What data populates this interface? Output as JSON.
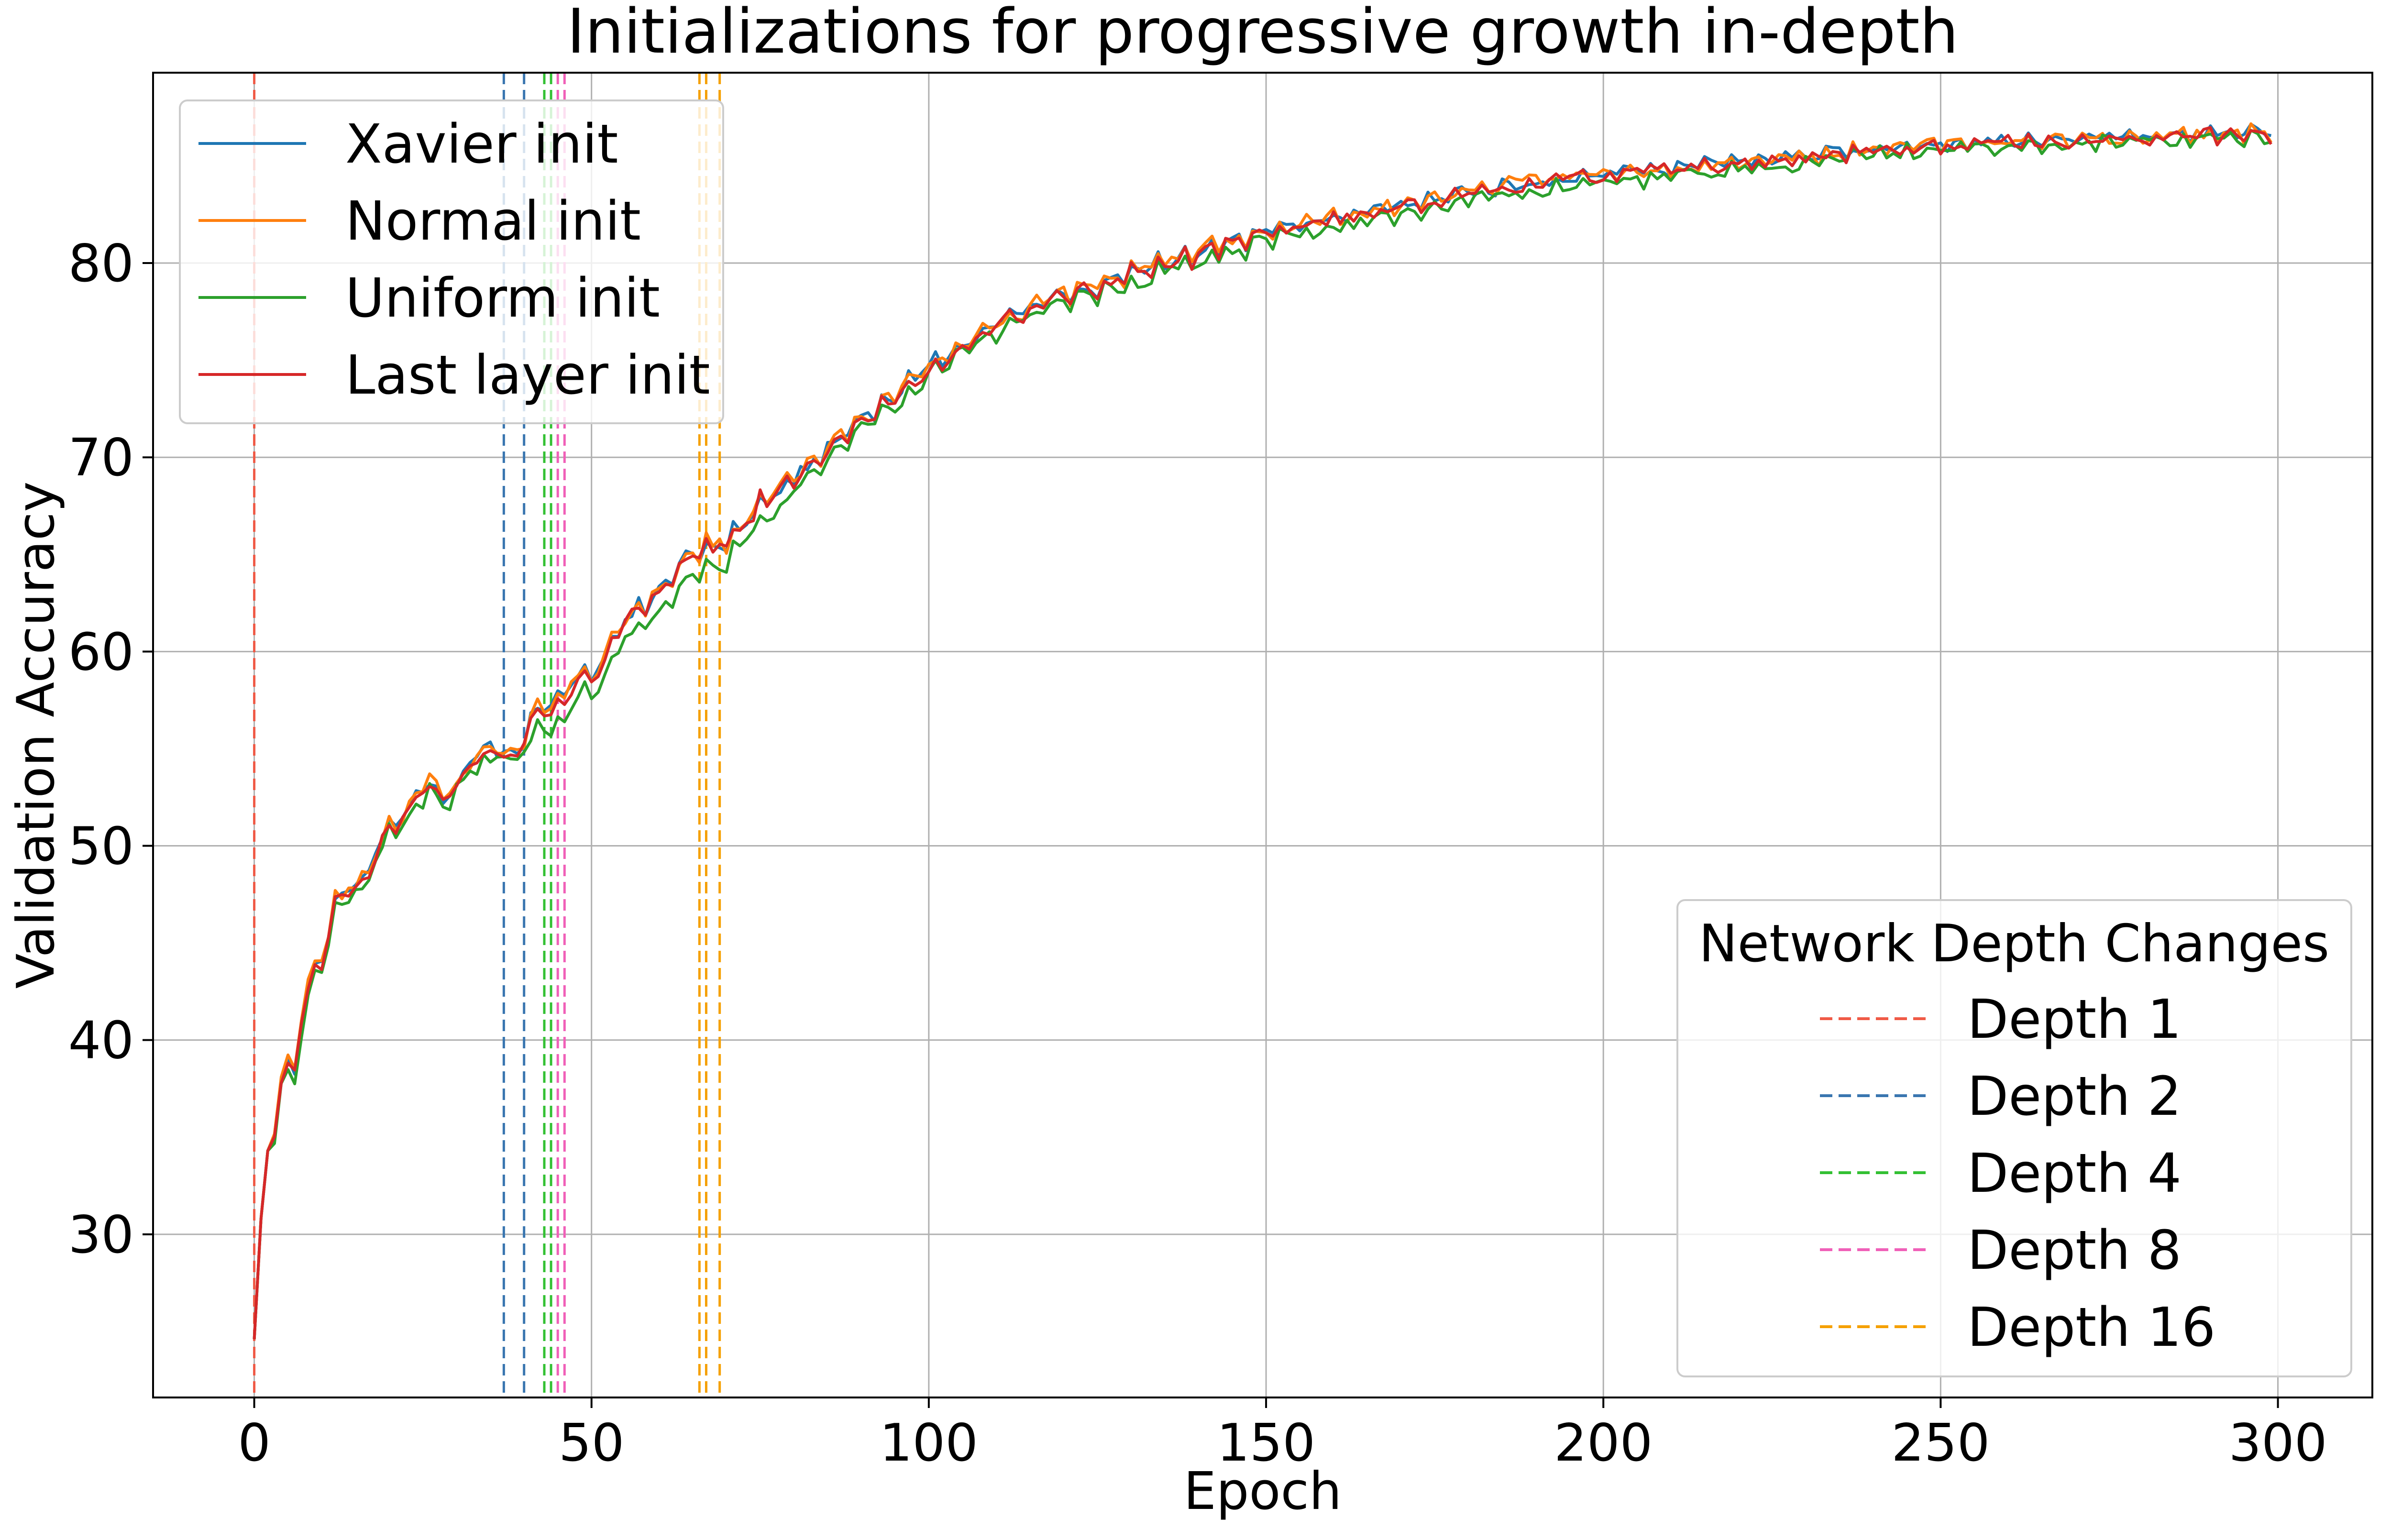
{
  "chart_data": {
    "type": "line",
    "title": "Initializations for progressive growth in-depth",
    "xlabel": "Epoch",
    "ylabel": "Validation Accuracy",
    "xlim": [
      -15,
      314
    ],
    "ylim": [
      21.6,
      89.8
    ],
    "xticks": [
      0,
      50,
      100,
      150,
      200,
      250,
      300
    ],
    "yticks": [
      30,
      40,
      50,
      60,
      70,
      80
    ],
    "grid": true,
    "anchors": {
      "x": [
        0,
        1,
        2,
        3,
        4,
        5,
        6,
        7,
        8,
        9,
        10,
        12,
        14,
        16,
        18,
        20,
        22,
        24,
        26,
        28,
        30,
        32,
        34,
        36,
        38,
        40,
        42,
        44,
        46,
        48,
        50,
        55,
        60,
        65,
        70,
        75,
        80,
        90,
        100,
        110,
        120,
        130,
        140,
        150,
        160,
        170,
        180,
        190,
        200,
        210,
        220,
        230,
        240,
        250,
        260,
        270,
        280,
        290,
        299
      ],
      "y": [
        24.6,
        30.8,
        34.3,
        35.5,
        37.8,
        39.0,
        38.4,
        41.0,
        42.5,
        44.1,
        43.9,
        47.0,
        47.8,
        48.1,
        49.5,
        51.0,
        51.4,
        52.5,
        53.2,
        52.4,
        53.0,
        54.2,
        54.6,
        55.1,
        54.4,
        55.5,
        57.0,
        57.2,
        57.4,
        59.0,
        58.5,
        61.6,
        63.0,
        65.1,
        65.5,
        67.5,
        68.8,
        71.8,
        74.5,
        76.8,
        78.3,
        79.3,
        80.5,
        81.5,
        82.2,
        82.8,
        83.6,
        84.1,
        84.5,
        84.8,
        85.1,
        85.4,
        85.8,
        86.0,
        86.2,
        86.3,
        86.4,
        86.6,
        86.6
      ]
    },
    "series": [
      {
        "name": "Xavier init",
        "color": "#1f77b4",
        "offset": 0.12,
        "seed": 11
      },
      {
        "name": "Normal init",
        "color": "#ff7f0e",
        "offset": 0.15,
        "seed": 23
      },
      {
        "name": "Uniform init",
        "color": "#2ca02c",
        "offset": -0.35,
        "seed": 37
      },
      {
        "name": "Last layer init",
        "color": "#d62728",
        "offset": 0.0,
        "seed": 53
      }
    ],
    "depth_changes": {
      "legend_title": "Network Depth Changes",
      "entries": [
        {
          "name": "Depth 1",
          "color": "#f05a46",
          "epochs": [
            0
          ]
        },
        {
          "name": "Depth 2",
          "color": "#3a76b0",
          "epochs": [
            37,
            40
          ]
        },
        {
          "name": "Depth 4",
          "color": "#33c033",
          "epochs": [
            43,
            44
          ]
        },
        {
          "name": "Depth 8",
          "color": "#f060b8",
          "epochs": [
            45,
            46
          ]
        },
        {
          "name": "Depth 16",
          "color": "#f5a000",
          "epochs": [
            66,
            67,
            69
          ]
        }
      ]
    },
    "legend_position": "upper-left",
    "depth_legend_position": "lower-right"
  }
}
